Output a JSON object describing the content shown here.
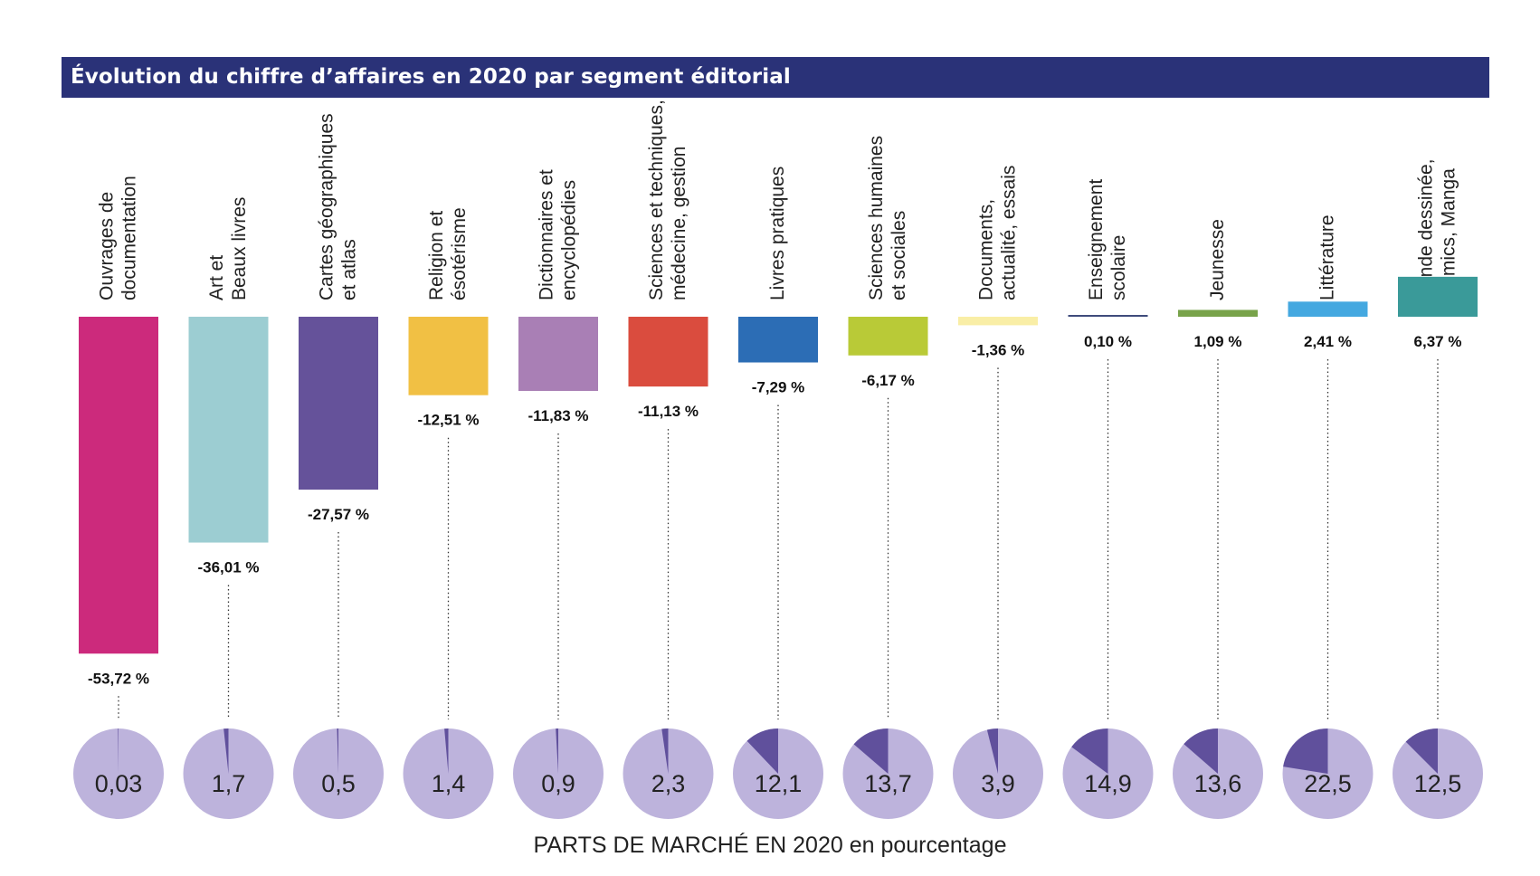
{
  "title": "Évolution du chiffre d’affaires en 2020 par segment éditorial",
  "footer": "PARTS DE MARCHÉ EN 2020 en pourcentage",
  "chart_data": {
    "type": "bar",
    "title": "Évolution du chiffre d’affaires en 2020 par segment éditorial",
    "xlabel": "",
    "ylabel": "",
    "categories": [
      [
        "Ouvrages de",
        "documentation"
      ],
      [
        "Art et",
        "Beaux livres"
      ],
      [
        "Cartes géographiques",
        "et atlas"
      ],
      [
        "Religion et",
        "ésotérisme"
      ],
      [
        "Dictionnaires et",
        "encyclopédies"
      ],
      [
        "Sciences et techniques,",
        "médecine, gestion"
      ],
      [
        "Livres pratiques"
      ],
      [
        "Sciences humaines",
        "et sociales"
      ],
      [
        "Documents,",
        "actualité, essais"
      ],
      [
        "Enseignement",
        "scolaire"
      ],
      [
        "Jeunesse"
      ],
      [
        "Littérature"
      ],
      [
        "Bande dessinée,",
        "Comics, Manga"
      ]
    ],
    "values": [
      -53.72,
      -36.01,
      -27.57,
      -12.51,
      -11.83,
      -11.13,
      -7.29,
      -6.17,
      -1.36,
      0.1,
      1.09,
      2.41,
      6.37
    ],
    "value_labels": [
      "-53,72 %",
      "-36,01 %",
      "-27,57 %",
      "-12,51 %",
      "-11,83 %",
      "-11,13 %",
      "-7,29 %",
      "-6,17 %",
      "-1,36 %",
      "0,10 %",
      "1,09 %",
      "2,41 %",
      "6,37 %"
    ],
    "colors": [
      "#cc2a7c",
      "#9ccdd2",
      "#65529a",
      "#f1c044",
      "#a97fb5",
      "#da4c3e",
      "#2c6db5",
      "#b9ca37",
      "#f9eea6",
      "#3f4b7c",
      "#78a34a",
      "#44a8e0",
      "#3a9a99"
    ],
    "market_share": {
      "values": [
        0.03,
        1.7,
        0.5,
        1.4,
        0.9,
        2.3,
        12.1,
        13.7,
        3.9,
        14.9,
        13.6,
        22.5,
        12.5
      ],
      "labels": [
        "0,03",
        "1,7",
        "0,5",
        "1,4",
        "0,9",
        "2,3",
        "12,1",
        "13,7",
        "3,9",
        "14,9",
        "13,6",
        "22,5",
        "12,5"
      ],
      "pie_color": "#bdb3dc",
      "slice_color": "#60509c"
    },
    "label_color": "#111111",
    "grid": false
  }
}
